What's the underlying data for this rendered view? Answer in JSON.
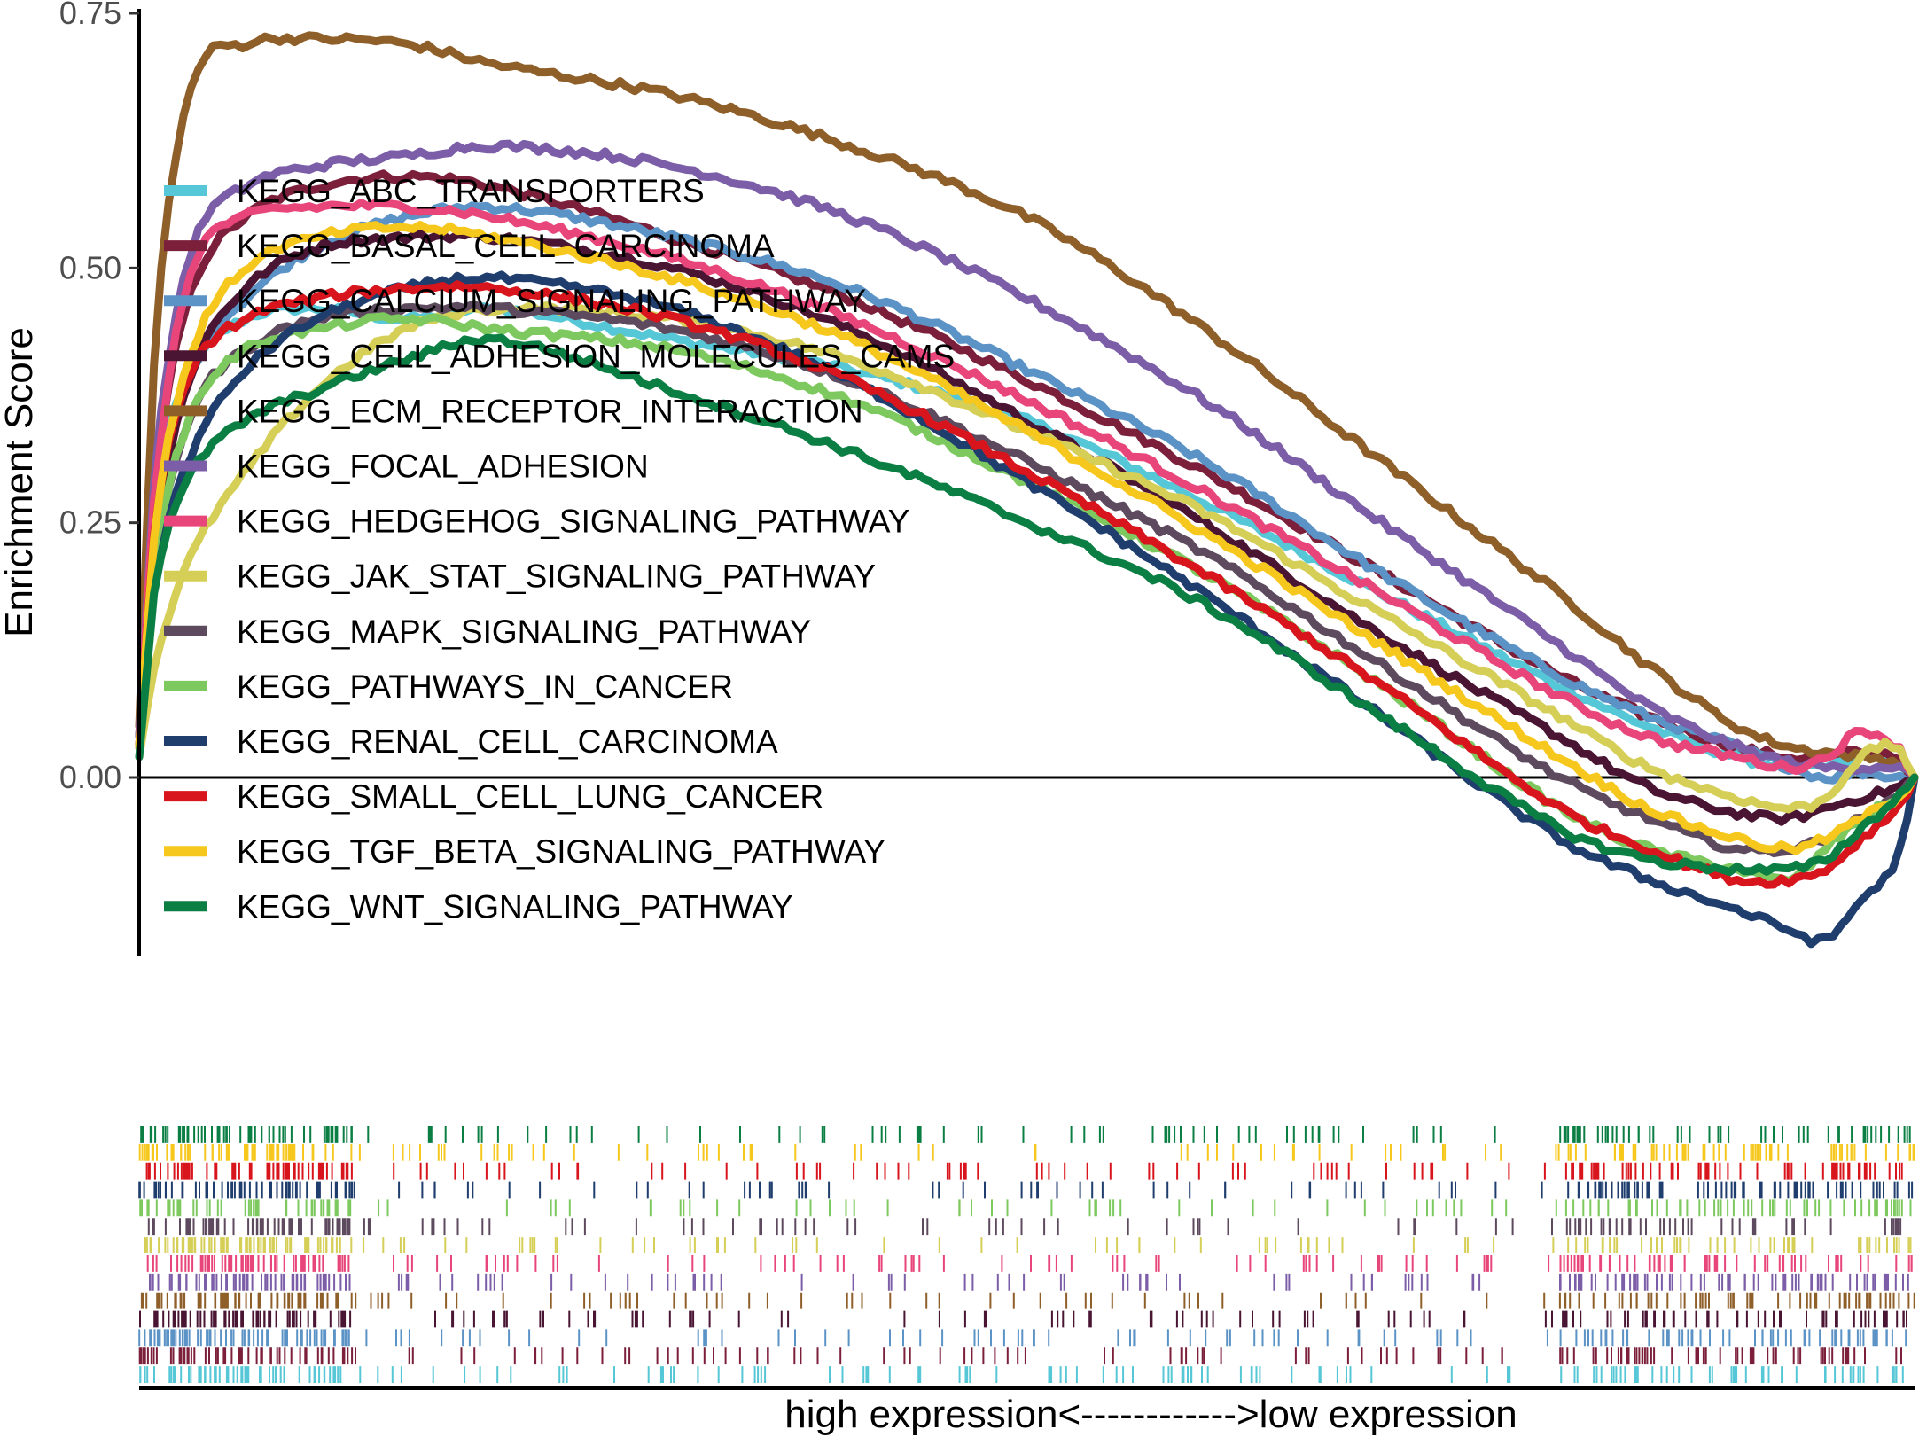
{
  "chart_data": {
    "type": "line",
    "title": "",
    "ylabel": "Enrichment Score",
    "xlabel": "high expression<------------>low expression",
    "ylim": [
      -0.175,
      0.75
    ],
    "yticks": [
      {
        "value": 0.0,
        "label": "0.00"
      },
      {
        "value": 0.25,
        "label": "0.25"
      },
      {
        "value": 0.5,
        "label": "0.50"
      },
      {
        "value": 0.75,
        "label": "0.75"
      }
    ],
    "x_fraction": [
      0,
      0.01,
      0.03,
      0.06,
      0.1,
      0.15,
      0.2,
      0.3,
      0.4,
      0.5,
      0.6,
      0.7,
      0.8,
      0.85,
      0.9,
      0.93,
      0.95,
      0.97,
      0.99,
      1.0
    ],
    "series": [
      {
        "name": "KEGG_ABC_TRANSPORTERS",
        "color": "#56c7d6",
        "values": [
          0.04,
          0.28,
          0.4,
          0.45,
          0.46,
          0.45,
          0.46,
          0.43,
          0.4,
          0.35,
          0.27,
          0.18,
          0.09,
          0.05,
          0.02,
          0.01,
          0.01,
          0.02,
          0.015,
          0.0
        ]
      },
      {
        "name": "KEGG_BASAL_CELL_CARCINOMA",
        "color": "#7b1f3a",
        "values": [
          0.04,
          0.3,
          0.48,
          0.55,
          0.58,
          0.59,
          0.58,
          0.53,
          0.47,
          0.39,
          0.3,
          0.2,
          0.1,
          0.06,
          0.03,
          0.02,
          0.02,
          0.025,
          0.02,
          0.0
        ]
      },
      {
        "name": "KEGG_CALCIUM_SIGNALING_PATHWAY",
        "color": "#5b93c6",
        "values": [
          0.03,
          0.25,
          0.4,
          0.47,
          0.52,
          0.55,
          0.56,
          0.53,
          0.48,
          0.4,
          0.31,
          0.2,
          0.1,
          0.06,
          0.03,
          0.01,
          0.0,
          0.005,
          0.0,
          0.0
        ]
      },
      {
        "name": "KEGG_CELL_ADHESION_MOLECULES_CAMS",
        "color": "#4a1433",
        "values": [
          0.03,
          0.24,
          0.4,
          0.48,
          0.52,
          0.53,
          0.53,
          0.5,
          0.44,
          0.35,
          0.25,
          0.14,
          0.04,
          -0.01,
          -0.035,
          -0.04,
          -0.03,
          -0.02,
          -0.01,
          0.0
        ]
      },
      {
        "name": "KEGG_ECM_RECEPTOR_INTERACTION",
        "color": "#8f5f2a",
        "values": [
          0.05,
          0.45,
          0.68,
          0.72,
          0.725,
          0.72,
          0.7,
          0.67,
          0.62,
          0.55,
          0.44,
          0.31,
          0.18,
          0.11,
          0.05,
          0.03,
          0.025,
          0.02,
          0.015,
          0.0
        ]
      },
      {
        "name": "KEGG_FOCAL_ADHESION",
        "color": "#7b5ea7",
        "values": [
          0.04,
          0.32,
          0.52,
          0.58,
          0.6,
          0.61,
          0.62,
          0.6,
          0.55,
          0.47,
          0.37,
          0.25,
          0.13,
          0.07,
          0.03,
          0.015,
          0.01,
          0.01,
          0.01,
          0.0
        ]
      },
      {
        "name": "KEGG_HEDGEHOG_SIGNALING_PATHWAY",
        "color": "#e8457a",
        "values": [
          0.03,
          0.3,
          0.5,
          0.55,
          0.56,
          0.56,
          0.55,
          0.51,
          0.45,
          0.37,
          0.28,
          0.18,
          0.08,
          0.04,
          0.02,
          0.01,
          0.02,
          0.045,
          0.03,
          0.0
        ]
      },
      {
        "name": "KEGG_JAK_STAT_SIGNALING_PATHWAY",
        "color": "#d6cf57",
        "values": [
          0.02,
          0.12,
          0.22,
          0.3,
          0.38,
          0.44,
          0.46,
          0.45,
          0.41,
          0.34,
          0.26,
          0.16,
          0.06,
          0.01,
          -0.02,
          -0.03,
          -0.02,
          0.02,
          0.03,
          0.0
        ]
      },
      {
        "name": "KEGG_MAPK_SIGNALING_PATHWAY",
        "color": "#5e4a5e",
        "values": [
          0.03,
          0.22,
          0.36,
          0.42,
          0.45,
          0.46,
          0.46,
          0.44,
          0.39,
          0.31,
          0.22,
          0.11,
          0.0,
          -0.04,
          -0.07,
          -0.07,
          -0.06,
          -0.04,
          -0.02,
          0.0
        ]
      },
      {
        "name": "KEGG_PATHWAYS_IN_CANCER",
        "color": "#7ec95f",
        "values": [
          0.03,
          0.22,
          0.36,
          0.42,
          0.44,
          0.45,
          0.44,
          0.42,
          0.37,
          0.29,
          0.2,
          0.09,
          -0.03,
          -0.07,
          -0.09,
          -0.1,
          -0.07,
          -0.04,
          -0.02,
          0.0
        ]
      },
      {
        "name": "KEGG_RENAL_CELL_CARCINOMA",
        "color": "#1f3e6e",
        "values": [
          0.03,
          0.2,
          0.32,
          0.4,
          0.45,
          0.48,
          0.49,
          0.46,
          0.39,
          0.29,
          0.18,
          0.06,
          -0.06,
          -0.1,
          -0.13,
          -0.15,
          -0.16,
          -0.12,
          -0.08,
          0.0
        ]
      },
      {
        "name": "KEGG_SMALL_CELL_LUNG_CANCER",
        "color": "#d8141c",
        "values": [
          0.03,
          0.26,
          0.4,
          0.45,
          0.47,
          0.48,
          0.48,
          0.45,
          0.39,
          0.3,
          0.2,
          0.09,
          -0.03,
          -0.07,
          -0.1,
          -0.1,
          -0.09,
          -0.06,
          -0.03,
          0.0
        ]
      },
      {
        "name": "KEGG_TGF_BETA_SIGNALING_PATHWAY",
        "color": "#f6c81e",
        "values": [
          0.03,
          0.26,
          0.42,
          0.5,
          0.53,
          0.54,
          0.53,
          0.49,
          0.43,
          0.34,
          0.24,
          0.13,
          0.02,
          -0.03,
          -0.06,
          -0.07,
          -0.06,
          -0.04,
          -0.02,
          0.0
        ]
      },
      {
        "name": "KEGG_WNT_SIGNALING_PATHWAY",
        "color": "#0b7f43",
        "values": [
          0.02,
          0.2,
          0.3,
          0.35,
          0.38,
          0.41,
          0.43,
          0.38,
          0.32,
          0.25,
          0.17,
          0.06,
          -0.05,
          -0.08,
          -0.09,
          -0.09,
          -0.08,
          -0.05,
          -0.02,
          0.0
        ]
      }
    ]
  }
}
